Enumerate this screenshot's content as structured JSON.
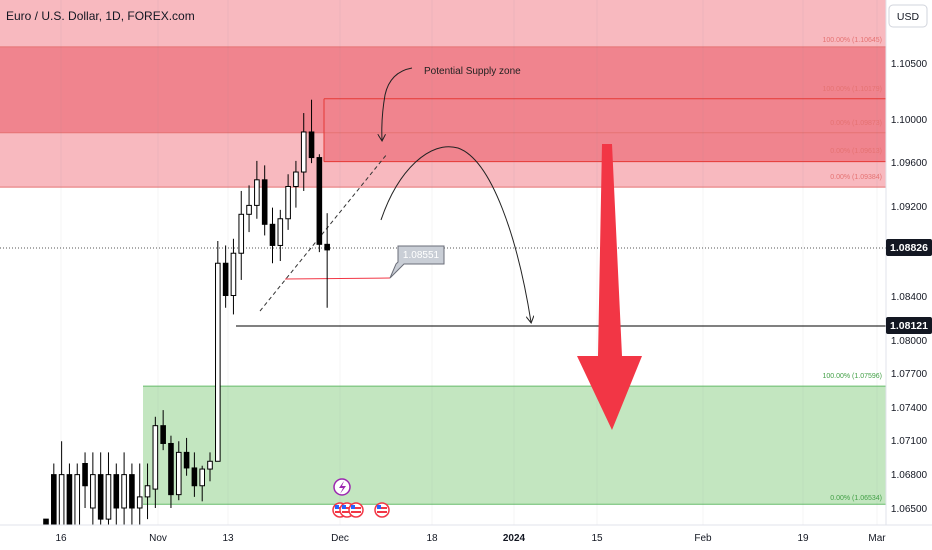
{
  "header": {
    "symbol_title": "Euro / U.S. Dollar, 1D, FOREX.com",
    "currency_button": "USD"
  },
  "annotations": {
    "supply_zone_text": "Potential Supply zone",
    "callout_value": "1.08551"
  },
  "colors": {
    "supply_light": "#f8b9bf",
    "supply_dark": "#f0848e",
    "demand": "#c3e6c0",
    "arrow_red": "#f23645",
    "candle_body": "#000000",
    "price_tag_bg": "#131722"
  },
  "chart_data": {
    "type": "candlestick",
    "title": "Euro / U.S. Dollar, 1D, FOREX.com",
    "currency": "USD",
    "y_axis": {
      "ticks": [
        "1.10500",
        "1.10000",
        "1.09600",
        "1.09200",
        "1.08400",
        "1.08000",
        "1.07700",
        "1.07400",
        "1.07100",
        "1.06800",
        "1.06500"
      ]
    },
    "x_axis": {
      "ticks": [
        "16",
        "Nov",
        "13",
        "Dec",
        "18",
        "2024",
        "15",
        "Feb",
        "19",
        "Mar"
      ]
    },
    "price_tags": [
      "1.08826",
      "1.08121"
    ],
    "fib_labels": [
      "100.00% (1.10645)",
      "100.00% (1.10179)",
      "0.00% (1.09873)",
      "0.00% (1.09613)",
      "0.00% (1.09384)",
      "100.00% (1.07596)",
      "0.00% (1.06534)"
    ],
    "candles": [
      {
        "o": 1.064,
        "h": 1.064,
        "l": 1.061,
        "c": 1.062
      },
      {
        "o": 1.068,
        "h": 1.069,
        "l": 1.062,
        "c": 1.063
      },
      {
        "o": 1.062,
        "h": 1.071,
        "l": 1.06,
        "c": 1.068
      },
      {
        "o": 1.068,
        "h": 1.069,
        "l": 1.062,
        "c": 1.063
      },
      {
        "o": 1.063,
        "h": 1.069,
        "l": 1.06,
        "c": 1.068
      },
      {
        "o": 1.069,
        "h": 1.07,
        "l": 1.065,
        "c": 1.067
      },
      {
        "o": 1.065,
        "h": 1.07,
        "l": 1.063,
        "c": 1.068
      },
      {
        "o": 1.068,
        "h": 1.07,
        "l": 1.061,
        "c": 1.064
      },
      {
        "o": 1.064,
        "h": 1.07,
        "l": 1.062,
        "c": 1.068
      },
      {
        "o": 1.068,
        "h": 1.069,
        "l": 1.063,
        "c": 1.065
      },
      {
        "o": 1.065,
        "h": 1.07,
        "l": 1.062,
        "c": 1.068
      },
      {
        "o": 1.068,
        "h": 1.069,
        "l": 1.063,
        "c": 1.065
      },
      {
        "o": 1.065,
        "h": 1.069,
        "l": 1.062,
        "c": 1.066
      },
      {
        "o": 1.066,
        "h": 1.069,
        "l": 1.064,
        "c": 1.067
      },
      {
        "o": 1.0667,
        "h": 1.0732,
        "l": 1.065,
        "c": 1.0724
      },
      {
        "o": 1.0724,
        "h": 1.0738,
        "l": 1.0702,
        "c": 1.0708
      },
      {
        "o": 1.0708,
        "h": 1.0715,
        "l": 1.065,
        "c": 1.0662
      },
      {
        "o": 1.0662,
        "h": 1.071,
        "l": 1.0657,
        "c": 1.07
      },
      {
        "o": 1.07,
        "h": 1.0713,
        "l": 1.0679,
        "c": 1.0686
      },
      {
        "o": 1.0686,
        "h": 1.07,
        "l": 1.066,
        "c": 1.067
      },
      {
        "o": 1.067,
        "h": 1.0688,
        "l": 1.0656,
        "c": 1.0685
      },
      {
        "o": 1.0685,
        "h": 1.07,
        "l": 1.0674,
        "c": 1.0692
      },
      {
        "o": 1.0692,
        "h": 1.089,
        "l": 1.0692,
        "c": 1.087
      },
      {
        "o": 1.087,
        "h": 1.0886,
        "l": 1.083,
        "c": 1.0841
      },
      {
        "o": 1.0841,
        "h": 1.0892,
        "l": 1.0824,
        "c": 1.0879
      },
      {
        "o": 1.0879,
        "h": 1.0935,
        "l": 1.0855,
        "c": 1.0914
      },
      {
        "o": 1.0914,
        "h": 1.094,
        "l": 1.0898,
        "c": 1.0922
      },
      {
        "o": 1.0922,
        "h": 1.0962,
        "l": 1.091,
        "c": 1.0945
      },
      {
        "o": 1.0945,
        "h": 1.0958,
        "l": 1.0895,
        "c": 1.0905
      },
      {
        "o": 1.0905,
        "h": 1.092,
        "l": 1.087,
        "c": 1.0886
      },
      {
        "o": 1.0886,
        "h": 1.0918,
        "l": 1.0872,
        "c": 1.091
      },
      {
        "o": 1.091,
        "h": 1.095,
        "l": 1.09,
        "c": 1.0939
      },
      {
        "o": 1.0939,
        "h": 1.0962,
        "l": 1.092,
        "c": 1.0952
      },
      {
        "o": 1.0952,
        "h": 1.1005,
        "l": 1.0935,
        "c": 1.0988
      },
      {
        "o": 1.0988,
        "h": 1.1017,
        "l": 1.096,
        "c": 1.0965
      },
      {
        "o": 1.0965,
        "h": 1.0968,
        "l": 1.088,
        "c": 1.0887
      },
      {
        "o": 1.0887,
        "h": 1.0915,
        "l": 1.083,
        "c": 1.0882
      }
    ]
  }
}
